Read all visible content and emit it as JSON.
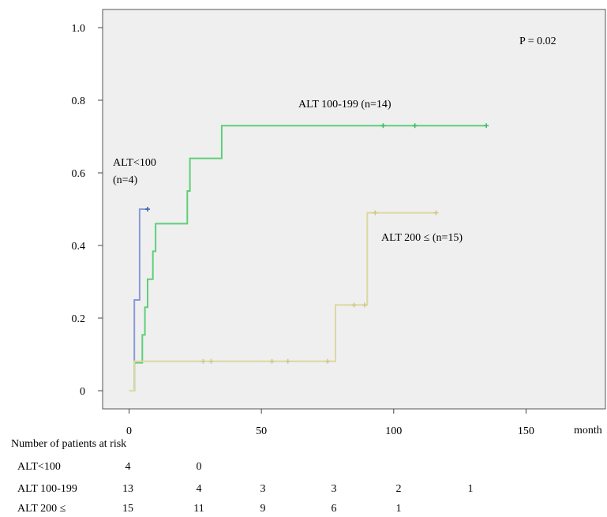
{
  "chart_data": {
    "type": "line",
    "subtype": "kaplan-meier-step",
    "background": "#efefef",
    "xlabel": "month",
    "xlim": [
      -10,
      180
    ],
    "ylim": [
      -0.05,
      1.05
    ],
    "x_ticks": [
      0,
      50,
      100,
      150
    ],
    "y_ticks": [
      0,
      0.2,
      0.4,
      0.6,
      0.8,
      1.0
    ],
    "x_tick_labels": [
      "0",
      "50",
      "100",
      "150"
    ],
    "y_tick_labels": [
      "0",
      "0.2",
      "0.4",
      "0.6",
      "0.8",
      "1.0"
    ],
    "annotation": "P = 0.02",
    "series": [
      {
        "label": "ALT<100",
        "label_line2": "(n=4)",
        "color": "#8a9ad6",
        "censor_color": "#3b5bb0",
        "steps": [
          [
            0,
            0
          ],
          [
            2,
            0
          ],
          [
            2,
            0.25
          ],
          [
            4,
            0.25
          ],
          [
            4,
            0.5
          ],
          [
            7,
            0.5
          ]
        ],
        "censored": [
          [
            7,
            0.5
          ]
        ]
      },
      {
        "label": "ALT 100-199 (n=14)",
        "color": "#5fcf7a",
        "censor_color": "#3dbb62",
        "steps": [
          [
            0,
            0
          ],
          [
            2,
            0
          ],
          [
            2,
            0.077
          ],
          [
            5,
            0.077
          ],
          [
            5,
            0.154
          ],
          [
            6,
            0.154
          ],
          [
            6,
            0.23
          ],
          [
            7,
            0.23
          ],
          [
            7,
            0.307
          ],
          [
            9,
            0.307
          ],
          [
            9,
            0.384
          ],
          [
            10,
            0.384
          ],
          [
            10,
            0.46
          ],
          [
            22,
            0.46
          ],
          [
            22,
            0.55
          ],
          [
            23,
            0.55
          ],
          [
            23,
            0.64
          ],
          [
            35,
            0.64
          ],
          [
            35,
            0.73
          ],
          [
            135,
            0.73
          ]
        ],
        "censored": [
          [
            96,
            0.73
          ],
          [
            108,
            0.73
          ],
          [
            135,
            0.73
          ]
        ]
      },
      {
        "label": "ALT 200 ≤ (n=15)",
        "color": "#ddd8a2",
        "censor_color": "#cfc68a",
        "steps": [
          [
            0,
            0
          ],
          [
            2,
            0
          ],
          [
            2,
            0.081
          ],
          [
            78,
            0.081
          ],
          [
            78,
            0.236
          ],
          [
            90,
            0.236
          ],
          [
            90,
            0.49
          ],
          [
            116,
            0.49
          ]
        ],
        "censored": [
          [
            28,
            0.081
          ],
          [
            31,
            0.081
          ],
          [
            54,
            0.081
          ],
          [
            60,
            0.081
          ],
          [
            75,
            0.081
          ],
          [
            85,
            0.236
          ],
          [
            89,
            0.236
          ],
          [
            93,
            0.49
          ],
          [
            116,
            0.49
          ]
        ]
      }
    ]
  },
  "risk_table": {
    "title": "Number of patients at risk",
    "rows": [
      {
        "label": "ALT<100",
        "values": [
          "4",
          "0"
        ]
      },
      {
        "label": "ALT 100-199",
        "values": [
          "13",
          "4",
          "3",
          "3",
          "2",
          "1"
        ]
      },
      {
        "label": "ALT 200 ≤",
        "values": [
          "15",
          "11",
          "9",
          "6",
          "1"
        ]
      }
    ]
  }
}
